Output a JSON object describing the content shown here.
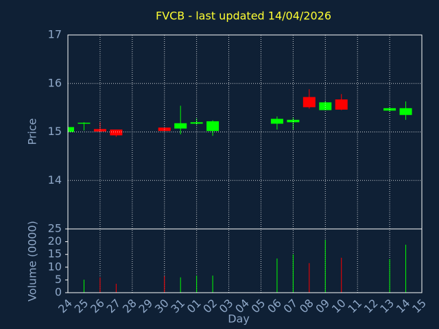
{
  "chart_data": {
    "type": "candlestick",
    "title": "FVCB - last updated 14/04/2026",
    "y_label": "Price",
    "x_label": "Day",
    "categories": [
      "24",
      "25",
      "26",
      "27",
      "28",
      "29",
      "30",
      "31",
      "01",
      "02",
      "03",
      "04",
      "05",
      "06",
      "07",
      "08",
      "09",
      "10",
      "11",
      "12",
      "13",
      "14",
      "15"
    ],
    "open": [
      15.0,
      15.17,
      15.06,
      15.05,
      null,
      null,
      15.09,
      15.07,
      15.17,
      15.02,
      null,
      null,
      null,
      15.17,
      15.2,
      15.72,
      15.45,
      15.67,
      null,
      null,
      15.44,
      15.35,
      null
    ],
    "high": [
      15.1,
      15.2,
      15.2,
      15.05,
      null,
      null,
      15.09,
      15.54,
      15.28,
      15.24,
      null,
      null,
      null,
      15.32,
      15.3,
      15.88,
      15.63,
      15.78,
      null,
      null,
      15.5,
      15.63,
      null
    ],
    "low": [
      15.0,
      15.03,
      15.0,
      14.9,
      null,
      null,
      15.02,
      14.95,
      15.15,
      14.92,
      null,
      null,
      null,
      15.05,
      15.05,
      15.48,
      15.45,
      15.45,
      null,
      null,
      15.42,
      15.25,
      null
    ],
    "close": [
      15.1,
      15.19,
      15.01,
      14.93,
      null,
      null,
      15.02,
      15.18,
      15.2,
      15.22,
      null,
      null,
      null,
      15.27,
      15.25,
      15.51,
      15.61,
      15.46,
      null,
      null,
      15.49,
      15.49,
      null
    ],
    "ylim": [
      13,
      17
    ],
    "yticks": [
      14,
      15,
      16,
      17
    ],
    "up_color": "#00ff00",
    "down_color": "#ff0000",
    "volume": {
      "label": "Volume (0000)",
      "values": [
        0.5,
        5.1,
        6,
        3.5,
        null,
        null,
        6.5,
        6,
        6.7,
        6.7,
        null,
        null,
        null,
        13.4,
        15,
        11.6,
        20.7,
        13.7,
        null,
        null,
        13.2,
        18.8,
        null
      ],
      "ylim": [
        0,
        25
      ],
      "yticks": [
        0,
        5,
        10,
        15,
        20,
        25
      ]
    },
    "grid": true
  }
}
